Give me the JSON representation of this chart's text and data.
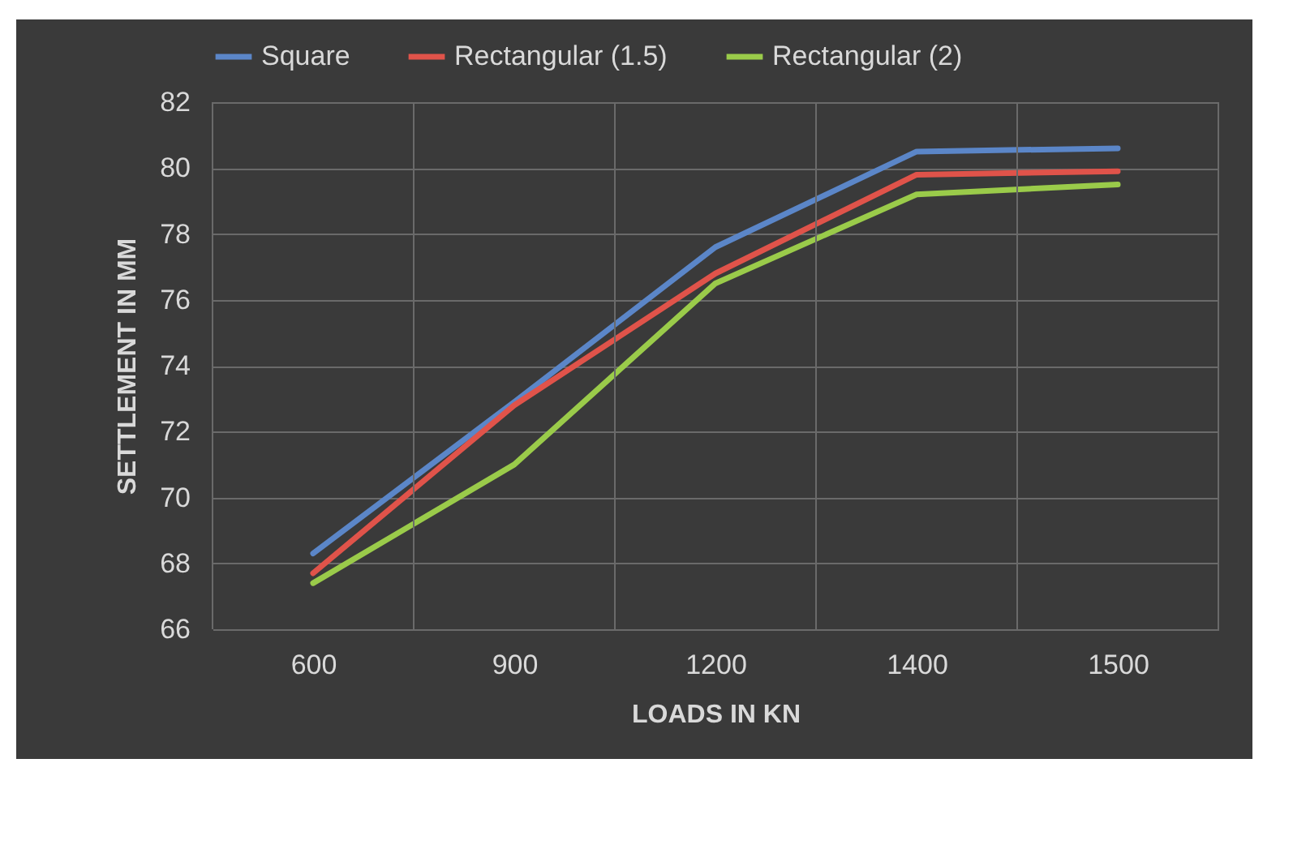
{
  "chart_data": {
    "type": "line",
    "xlabel": "LOADS IN KN",
    "ylabel": "SETTLEMENT IN MM",
    "categories": [
      "600",
      "900",
      "1200",
      "1400",
      "1500"
    ],
    "series": [
      {
        "name": "Square",
        "color": "#5b86c8",
        "values": [
          68.3,
          72.9,
          77.6,
          80.5,
          80.6
        ]
      },
      {
        "name": "Rectangular (1.5)",
        "color": "#e0534a",
        "values": [
          67.7,
          72.8,
          76.8,
          79.8,
          79.9
        ]
      },
      {
        "name": "Rectangular (2)",
        "color": "#9acb4a",
        "values": [
          67.4,
          71.0,
          76.5,
          79.2,
          79.5
        ]
      }
    ],
    "ylim": [
      66,
      82
    ],
    "yticks": [
      66,
      68,
      70,
      72,
      74,
      76,
      78,
      80,
      82
    ],
    "grid": true,
    "legend": "top",
    "marker": "none",
    "line_style": "solid"
  }
}
